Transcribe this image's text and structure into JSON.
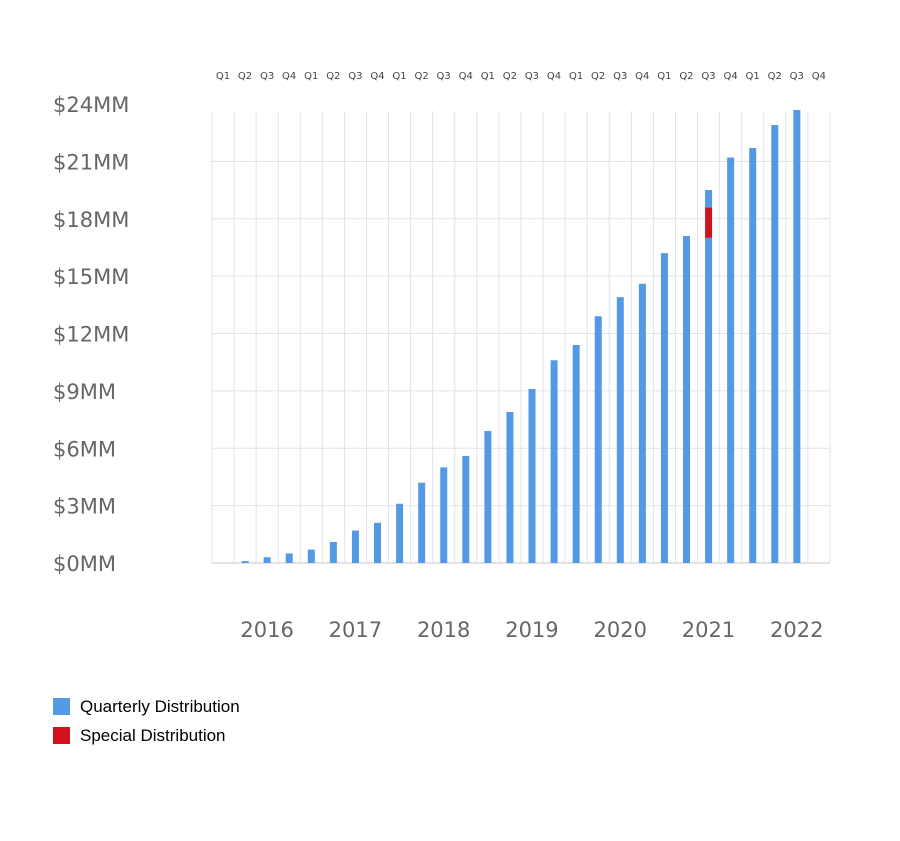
{
  "colors": {
    "quarterly": "#5499E3",
    "special": "#D0121F",
    "grid": "#E3E3E3",
    "axis_text": "#666666",
    "quarter_text": "#444444"
  },
  "legend": {
    "items": [
      {
        "label": "Quarterly Distribution",
        "color": "#5499E3"
      },
      {
        "label": "Special Distribution",
        "color": "#D0121F"
      }
    ]
  },
  "chart_data": {
    "type": "bar",
    "stacked": true,
    "ylim": [
      0,
      24
    ],
    "y_ticks": [
      0,
      3,
      6,
      9,
      12,
      15,
      18,
      21,
      24
    ],
    "y_tick_labels": [
      "$0MM",
      "$3MM",
      "$6MM",
      "$9MM",
      "$12MM",
      "$15MM",
      "$18MM",
      "$21MM",
      "$24MM"
    ],
    "grid": true,
    "legend_position": "bottom-left",
    "years": [
      "2016",
      "2017",
      "2018",
      "2019",
      "2020",
      "2021",
      "2022"
    ],
    "categories": [
      "Q1",
      "Q2",
      "Q3",
      "Q4",
      "Q1",
      "Q2",
      "Q3",
      "Q4",
      "Q1",
      "Q2",
      "Q3",
      "Q4",
      "Q1",
      "Q2",
      "Q3",
      "Q4",
      "Q1",
      "Q2",
      "Q3",
      "Q4",
      "Q1",
      "Q2",
      "Q3",
      "Q4",
      "Q1",
      "Q2",
      "Q3",
      "Q4"
    ],
    "series": [
      {
        "name": "Quarterly Distribution",
        "values": [
          0,
          0.1,
          0.3,
          0.5,
          0.7,
          1.1,
          1.7,
          2.1,
          3.1,
          4.2,
          5.0,
          5.6,
          6.9,
          7.9,
          9.1,
          10.6,
          11.4,
          12.9,
          13.9,
          14.6,
          16.2,
          17.1,
          17.0,
          21.2,
          21.7,
          22.9,
          24.1,
          0
        ]
      },
      {
        "name": "Special Distribution",
        "values": [
          0,
          0,
          0,
          0,
          0,
          0,
          0,
          0,
          0,
          0,
          0,
          0,
          0,
          0,
          0,
          0,
          0,
          0,
          0,
          0,
          0,
          0,
          1.6,
          0,
          0,
          0,
          0,
          0
        ]
      },
      {
        "values": [
          0,
          0,
          0,
          0,
          0,
          0,
          0,
          0,
          0,
          0,
          0,
          0,
          0,
          0,
          0,
          0,
          0,
          0,
          0,
          0,
          0,
          0,
          0.9,
          0,
          0,
          0,
          0,
          0
        ]
      }
    ]
  }
}
